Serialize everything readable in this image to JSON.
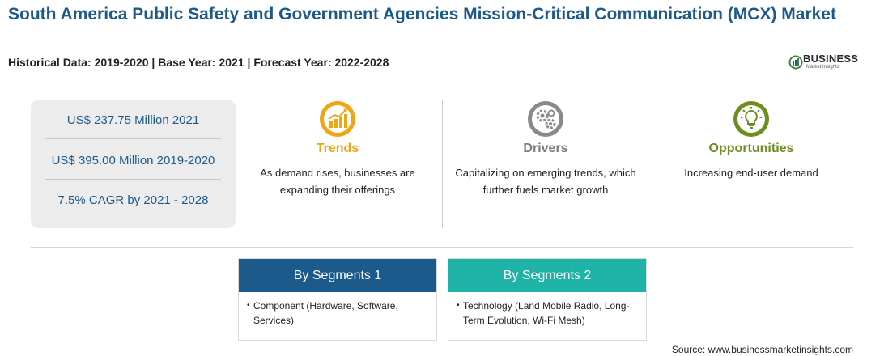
{
  "header": {
    "title": "South America Public Safety and Government Agencies Mission-Critical Communication (MCX) Market",
    "subtitle": "Historical Data: 2019-2020 | Base Year: 2021 | Forecast Year: 2022-2028"
  },
  "logo": {
    "name": "BUSINESS",
    "tagline": "Market Insights",
    "colors": {
      "green": "#3c8a3a",
      "blue": "#1d5a8c"
    }
  },
  "stats": [
    "US$ 237.75 Million 2021",
    "US$ 395.00 Million 2019-2020",
    "7.5% CAGR by 2021 - 2028"
  ],
  "columns": {
    "trends": {
      "heading": "Trends",
      "icon": "rising-chart-icon",
      "color": "#f0a514",
      "text": "As demand rises, businesses are expanding their offerings"
    },
    "drivers": {
      "heading": "Drivers",
      "icon": "gears-icon",
      "color": "#7d7d7d",
      "text": "Capitalizing on emerging trends, which further fuels market growth"
    },
    "opportunities": {
      "heading": "Opportunities",
      "icon": "lightbulb-icon",
      "color": "#6b8e1f",
      "text": "Increasing end-user demand"
    }
  },
  "segments": [
    {
      "title": "By Segments 1",
      "color": "#1d5a8c",
      "item": "Component (Hardware, Software, Services)"
    },
    {
      "title": "By Segments 2",
      "color": "#1fb3a8",
      "item": "Technology (Land Mobile Radio, Long-Term Evolution, Wi-Fi Mesh)"
    }
  ],
  "source": "Source: www.businessmarketinsights.com"
}
